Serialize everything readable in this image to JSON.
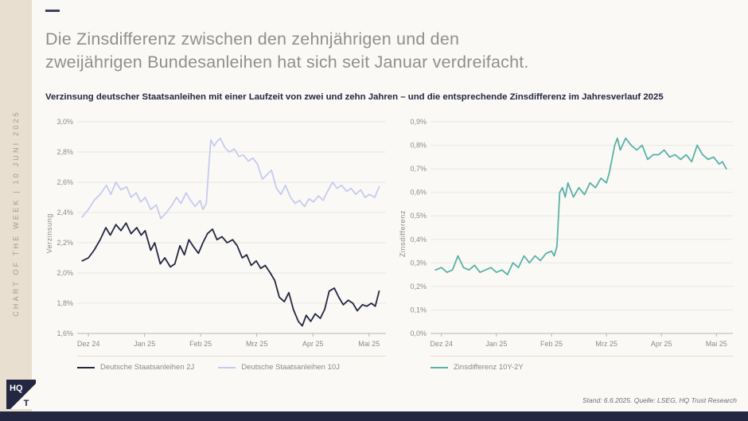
{
  "sidebar": {
    "vertical_text": "CHART OF THE WEEK | 10 JUNI 2025"
  },
  "header": {
    "title_line1": "Die Zinsdifferenz zwischen den zehnjährigen und den",
    "title_line2": "zweijährigen Bundesanleihen hat sich seit Januar verdreifacht.",
    "subtitle": "Verzinsung deutscher Staatsanleihen mit einer Laufzeit von zwei und zehn Jahren – und die entsprechende Zinsdifferenz im Jahresverlauf 2025"
  },
  "footer": {
    "source": "Stand: 6.6.2025. Quelle: LSEG, HQ Trust Research"
  },
  "logo": {
    "top": "HQ",
    "bottom": "T"
  },
  "colors": {
    "navy": "#232741",
    "lavender": "#c5cbef",
    "teal": "#58b2a7",
    "beige": "#e8dfd1",
    "title_gray": "#8f8f8f",
    "grid": "#e9e7e2",
    "axis": "#b9b5ad"
  },
  "chart_data": [
    {
      "type": "line",
      "title": "Verzinsung deutscher Staatsanleihen 2J und 10J",
      "xlabel": "",
      "ylabel": "Verzinsung",
      "ylim": [
        1.6,
        3.0
      ],
      "yticks": [
        [
          1.6,
          "1,6%"
        ],
        [
          1.8,
          "1,8%"
        ],
        [
          2.0,
          "2,0%"
        ],
        [
          2.2,
          "2,2%"
        ],
        [
          2.4,
          "2,4%"
        ],
        [
          2.6,
          "2,6%"
        ],
        [
          2.8,
          "2,8%"
        ],
        [
          3.0,
          "3,0%"
        ]
      ],
      "xlim": [
        -0.2,
        5.3
      ],
      "xticks": [
        [
          0,
          "Dez 24"
        ],
        [
          1,
          "Jan 25"
        ],
        [
          2,
          "Feb 25"
        ],
        [
          3,
          "Mrz 25"
        ],
        [
          4,
          "Apr 25"
        ],
        [
          5,
          "Mai 25"
        ]
      ],
      "x_unit": "months since Dez 24",
      "grid": true,
      "legend_position": "bottom",
      "series": [
        {
          "name": "Deutsche Staatsanleihen 2J",
          "color": "#232741",
          "points": [
            [
              -0.11,
              2.08
            ],
            [
              0,
              2.1
            ],
            [
              0.1,
              2.15
            ],
            [
              0.21,
              2.22
            ],
            [
              0.31,
              2.3
            ],
            [
              0.39,
              2.25
            ],
            [
              0.49,
              2.32
            ],
            [
              0.58,
              2.28
            ],
            [
              0.67,
              2.33
            ],
            [
              0.76,
              2.26
            ],
            [
              0.86,
              2.3
            ],
            [
              0.94,
              2.25
            ],
            [
              1.01,
              2.28
            ],
            [
              1.11,
              2.15
            ],
            [
              1.18,
              2.2
            ],
            [
              1.28,
              2.06
            ],
            [
              1.36,
              2.1
            ],
            [
              1.46,
              2.04
            ],
            [
              1.54,
              2.06
            ],
            [
              1.63,
              2.18
            ],
            [
              1.71,
              2.12
            ],
            [
              1.79,
              2.22
            ],
            [
              1.88,
              2.17
            ],
            [
              1.96,
              2.13
            ],
            [
              2.04,
              2.2
            ],
            [
              2.12,
              2.26
            ],
            [
              2.21,
              2.29
            ],
            [
              2.29,
              2.22
            ],
            [
              2.38,
              2.24
            ],
            [
              2.47,
              2.2
            ],
            [
              2.57,
              2.22
            ],
            [
              2.65,
              2.18
            ],
            [
              2.74,
              2.1
            ],
            [
              2.82,
              2.12
            ],
            [
              2.9,
              2.05
            ],
            [
              2.99,
              2.08
            ],
            [
              3.07,
              2.03
            ],
            [
              3.15,
              2.05
            ],
            [
              3.24,
              2.0
            ],
            [
              3.32,
              1.95
            ],
            [
              3.4,
              1.84
            ],
            [
              3.49,
              1.81
            ],
            [
              3.57,
              1.87
            ],
            [
              3.65,
              1.76
            ],
            [
              3.74,
              1.68
            ],
            [
              3.81,
              1.65
            ],
            [
              3.88,
              1.72
            ],
            [
              3.96,
              1.68
            ],
            [
              4.04,
              1.73
            ],
            [
              4.13,
              1.7
            ],
            [
              4.21,
              1.76
            ],
            [
              4.29,
              1.88
            ],
            [
              4.38,
              1.9
            ],
            [
              4.46,
              1.84
            ],
            [
              4.54,
              1.79
            ],
            [
              4.63,
              1.82
            ],
            [
              4.71,
              1.8
            ],
            [
              4.79,
              1.75
            ],
            [
              4.88,
              1.79
            ],
            [
              4.96,
              1.78
            ],
            [
              5.04,
              1.8
            ],
            [
              5.11,
              1.78
            ],
            [
              5.18,
              1.88
            ]
          ]
        },
        {
          "name": "Deutsche Staatsanleihen 10J",
          "color": "#c5cbef",
          "points": [
            [
              -0.11,
              2.37
            ],
            [
              0,
              2.42
            ],
            [
              0.1,
              2.48
            ],
            [
              0.21,
              2.52
            ],
            [
              0.32,
              2.58
            ],
            [
              0.4,
              2.52
            ],
            [
              0.49,
              2.6
            ],
            [
              0.58,
              2.55
            ],
            [
              0.68,
              2.57
            ],
            [
              0.76,
              2.5
            ],
            [
              0.85,
              2.53
            ],
            [
              0.93,
              2.47
            ],
            [
              1.01,
              2.5
            ],
            [
              1.11,
              2.42
            ],
            [
              1.21,
              2.45
            ],
            [
              1.29,
              2.36
            ],
            [
              1.39,
              2.4
            ],
            [
              1.49,
              2.45
            ],
            [
              1.57,
              2.5
            ],
            [
              1.65,
              2.46
            ],
            [
              1.74,
              2.53
            ],
            [
              1.82,
              2.48
            ],
            [
              1.9,
              2.44
            ],
            [
              1.99,
              2.48
            ],
            [
              2.04,
              2.42
            ],
            [
              2.1,
              2.46
            ],
            [
              2.14,
              2.68
            ],
            [
              2.18,
              2.88
            ],
            [
              2.24,
              2.84
            ],
            [
              2.29,
              2.87
            ],
            [
              2.35,
              2.89
            ],
            [
              2.43,
              2.83
            ],
            [
              2.51,
              2.8
            ],
            [
              2.6,
              2.82
            ],
            [
              2.68,
              2.77
            ],
            [
              2.76,
              2.78
            ],
            [
              2.85,
              2.74
            ],
            [
              2.93,
              2.76
            ],
            [
              3.01,
              2.72
            ],
            [
              3.1,
              2.62
            ],
            [
              3.18,
              2.65
            ],
            [
              3.26,
              2.68
            ],
            [
              3.35,
              2.56
            ],
            [
              3.43,
              2.52
            ],
            [
              3.51,
              2.58
            ],
            [
              3.6,
              2.5
            ],
            [
              3.68,
              2.46
            ],
            [
              3.76,
              2.48
            ],
            [
              3.85,
              2.44
            ],
            [
              3.93,
              2.49
            ],
            [
              4.01,
              2.47
            ],
            [
              4.1,
              2.51
            ],
            [
              4.18,
              2.48
            ],
            [
              4.26,
              2.54
            ],
            [
              4.35,
              2.6
            ],
            [
              4.43,
              2.56
            ],
            [
              4.51,
              2.58
            ],
            [
              4.6,
              2.54
            ],
            [
              4.68,
              2.56
            ],
            [
              4.76,
              2.52
            ],
            [
              4.85,
              2.55
            ],
            [
              4.93,
              2.5
            ],
            [
              5.01,
              2.52
            ],
            [
              5.1,
              2.5
            ],
            [
              5.18,
              2.57
            ]
          ]
        }
      ]
    },
    {
      "type": "line",
      "title": "Zinsdifferenz 10Y-2Y",
      "xlabel": "",
      "ylabel": "Zinsdifferenz",
      "ylim": [
        0.0,
        0.9
      ],
      "yticks": [
        [
          0.0,
          "0,0%"
        ],
        [
          0.1,
          "0,1%"
        ],
        [
          0.2,
          "0,2%"
        ],
        [
          0.3,
          "0,3%"
        ],
        [
          0.4,
          "0,4%"
        ],
        [
          0.5,
          "0,5%"
        ],
        [
          0.6,
          "0,6%"
        ],
        [
          0.7,
          "0,7%"
        ],
        [
          0.8,
          "0,8%"
        ],
        [
          0.9,
          "0,9%"
        ]
      ],
      "xlim": [
        -0.2,
        5.3
      ],
      "xticks": [
        [
          0,
          "Dez 24"
        ],
        [
          1,
          "Jan 25"
        ],
        [
          2,
          "Feb 25"
        ],
        [
          3,
          "Mrz 25"
        ],
        [
          4,
          "Apr 25"
        ],
        [
          5,
          "Mai 25"
        ]
      ],
      "x_unit": "months since Dez 24",
      "grid": true,
      "legend_position": "bottom",
      "series": [
        {
          "name": "Zinsdifferenz 10Y-2Y",
          "color": "#58b2a7",
          "points": [
            [
              -0.11,
              0.27
            ],
            [
              0,
              0.28
            ],
            [
              0.1,
              0.26
            ],
            [
              0.2,
              0.27
            ],
            [
              0.3,
              0.33
            ],
            [
              0.4,
              0.28
            ],
            [
              0.5,
              0.27
            ],
            [
              0.6,
              0.29
            ],
            [
              0.7,
              0.26
            ],
            [
              0.8,
              0.27
            ],
            [
              0.9,
              0.28
            ],
            [
              1.0,
              0.26
            ],
            [
              1.1,
              0.27
            ],
            [
              1.2,
              0.25
            ],
            [
              1.3,
              0.3
            ],
            [
              1.4,
              0.28
            ],
            [
              1.5,
              0.33
            ],
            [
              1.6,
              0.3
            ],
            [
              1.7,
              0.33
            ],
            [
              1.8,
              0.31
            ],
            [
              1.9,
              0.34
            ],
            [
              2.0,
              0.35
            ],
            [
              2.05,
              0.33
            ],
            [
              2.1,
              0.37
            ],
            [
              2.15,
              0.6
            ],
            [
              2.2,
              0.62
            ],
            [
              2.25,
              0.58
            ],
            [
              2.3,
              0.64
            ],
            [
              2.4,
              0.58
            ],
            [
              2.5,
              0.62
            ],
            [
              2.6,
              0.59
            ],
            [
              2.7,
              0.64
            ],
            [
              2.8,
              0.62
            ],
            [
              2.9,
              0.66
            ],
            [
              3.0,
              0.64
            ],
            [
              3.05,
              0.68
            ],
            [
              3.15,
              0.8
            ],
            [
              3.2,
              0.83
            ],
            [
              3.25,
              0.78
            ],
            [
              3.35,
              0.83
            ],
            [
              3.45,
              0.8
            ],
            [
              3.55,
              0.78
            ],
            [
              3.65,
              0.8
            ],
            [
              3.75,
              0.74
            ],
            [
              3.85,
              0.76
            ],
            [
              3.95,
              0.76
            ],
            [
              4.05,
              0.78
            ],
            [
              4.15,
              0.75
            ],
            [
              4.25,
              0.76
            ],
            [
              4.35,
              0.74
            ],
            [
              4.45,
              0.76
            ],
            [
              4.55,
              0.73
            ],
            [
              4.65,
              0.8
            ],
            [
              4.75,
              0.76
            ],
            [
              4.85,
              0.74
            ],
            [
              4.95,
              0.75
            ],
            [
              5.05,
              0.72
            ],
            [
              5.11,
              0.73
            ],
            [
              5.18,
              0.7
            ]
          ]
        }
      ]
    }
  ]
}
